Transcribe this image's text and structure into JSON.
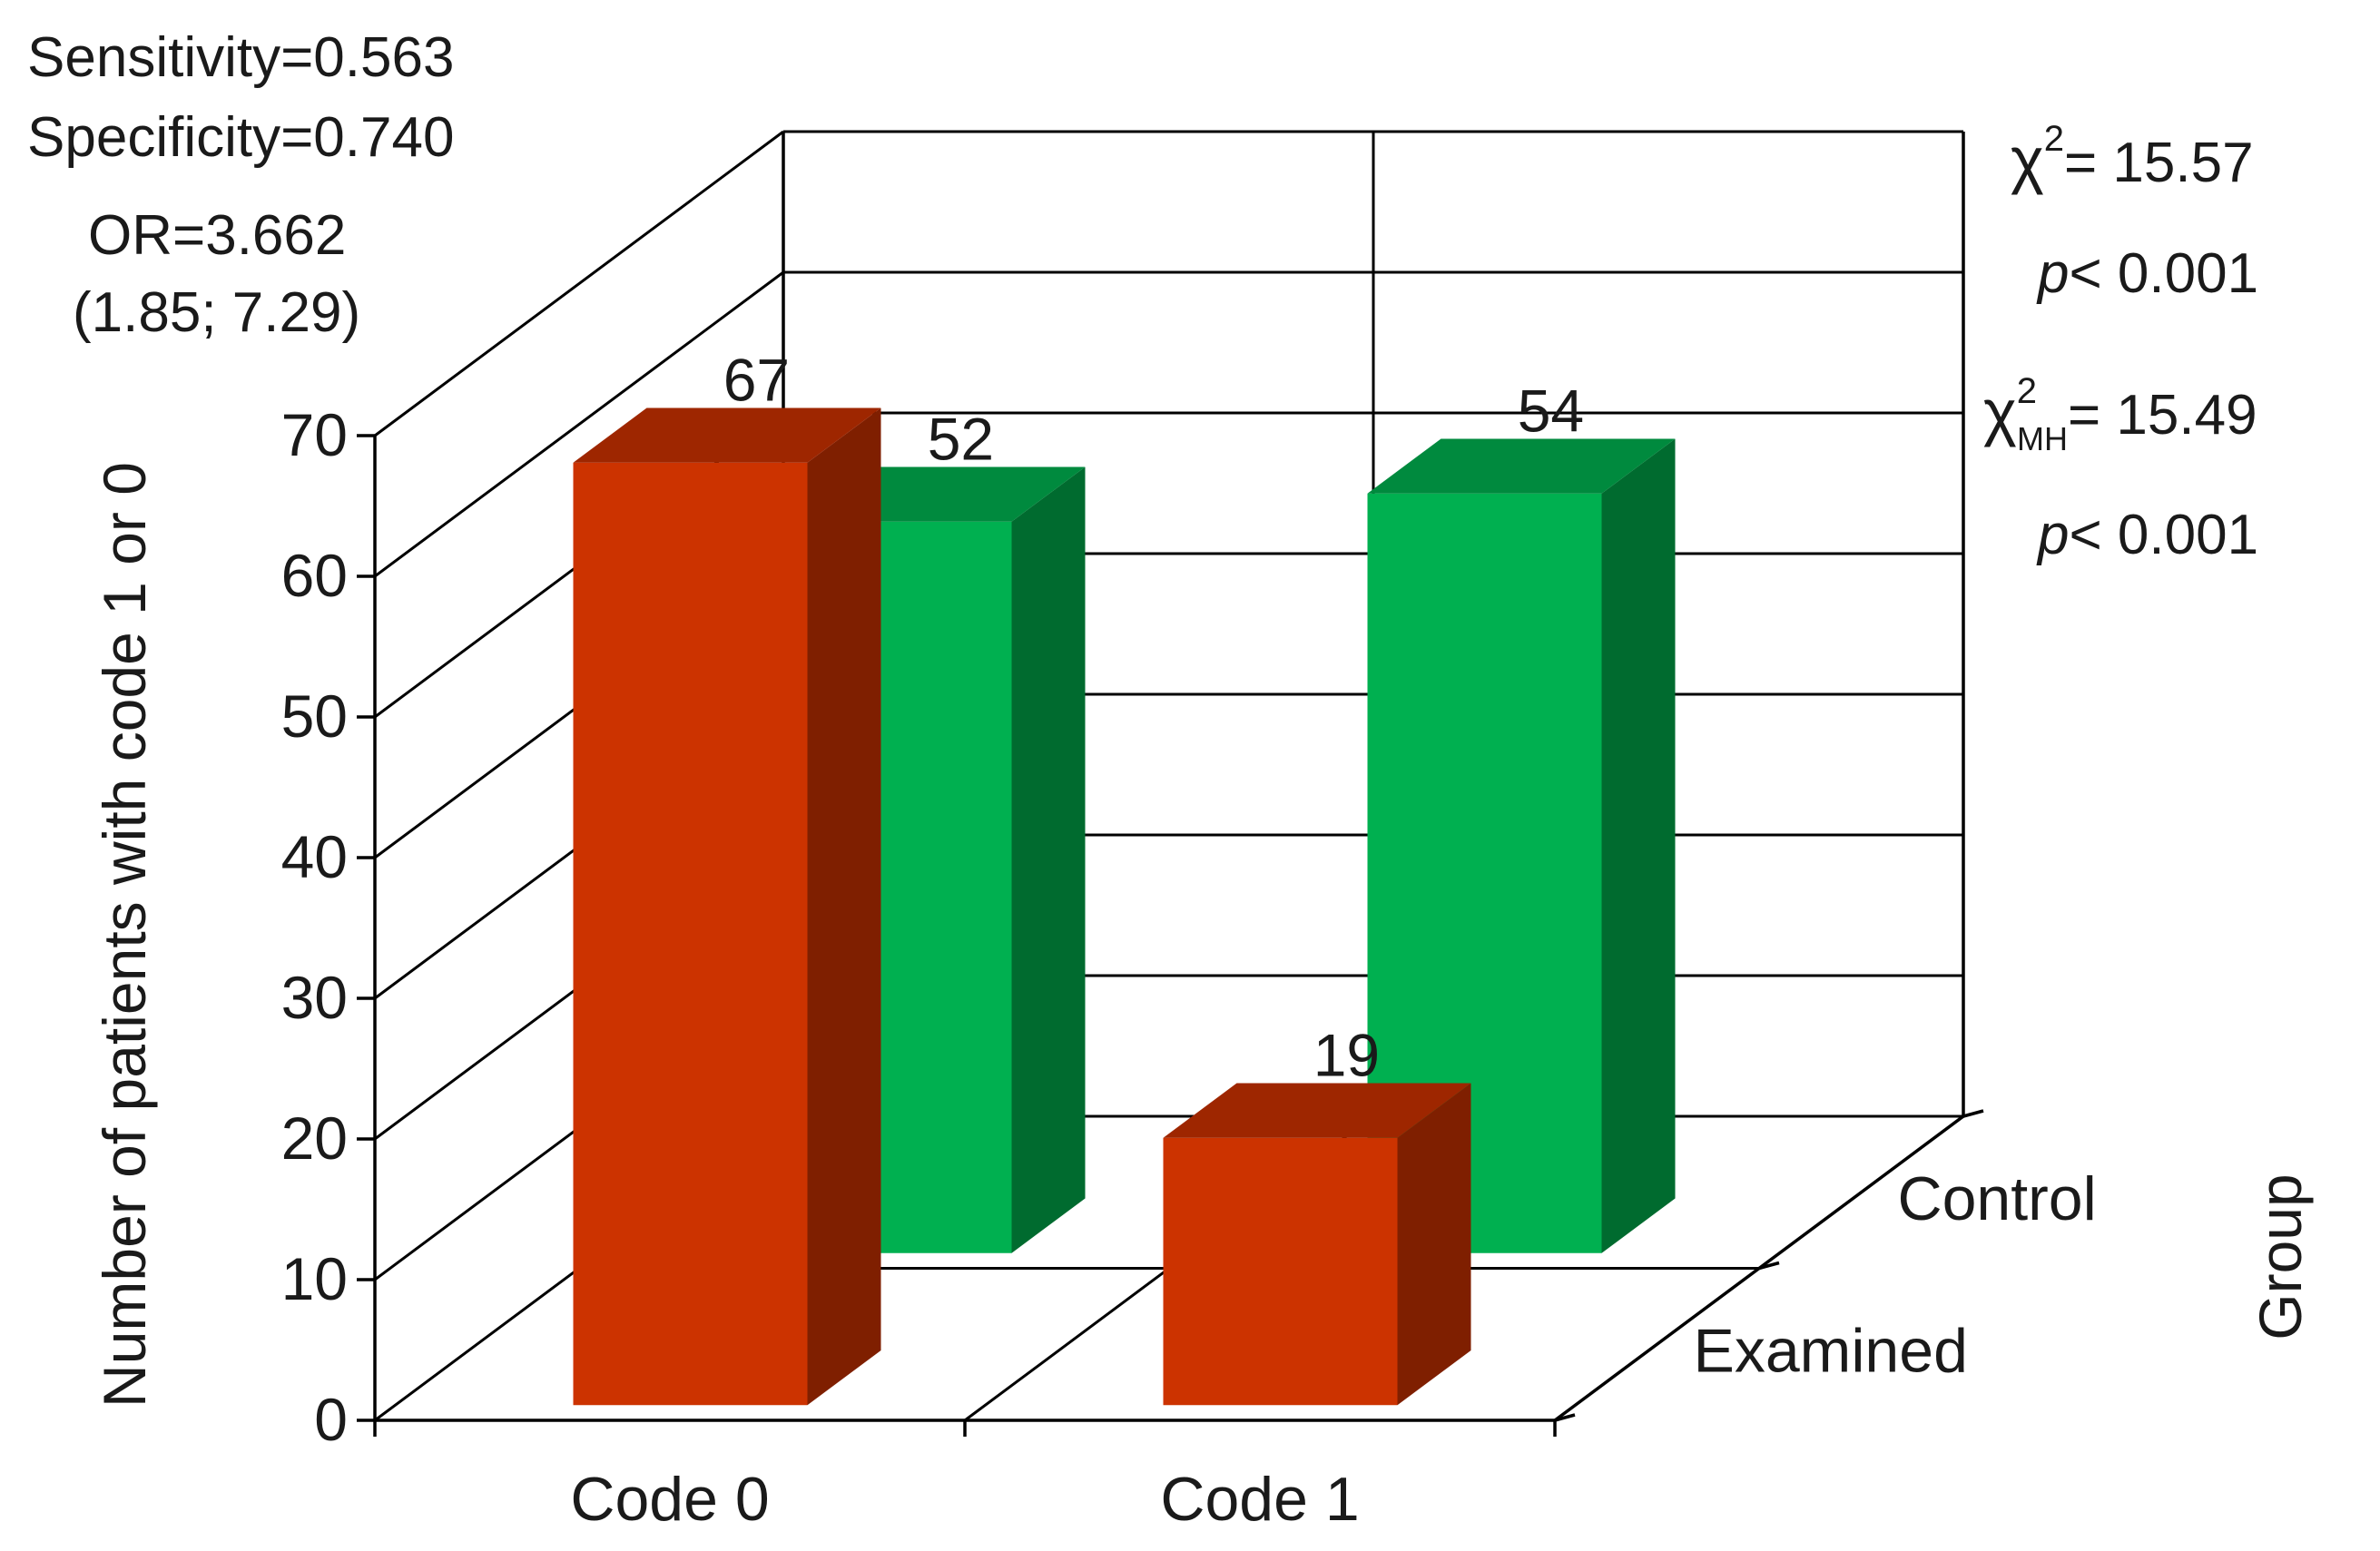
{
  "chart_data": {
    "type": "bar",
    "style": "3d-clustered",
    "categories": [
      "Code 0",
      "Code 1"
    ],
    "series": [
      {
        "name": "Examined",
        "values": [
          67,
          19
        ],
        "color": "#cc3300",
        "side_color": "#7f1f00",
        "top_color": "#9e2600"
      },
      {
        "name": "Control",
        "values": [
          52,
          54
        ],
        "color": "#00b050",
        "side_color": "#006b2f",
        "top_color": "#008a3e"
      }
    ],
    "ylabel": "Number of patients with code 1 or 0",
    "depth_axis_label": "Group",
    "ylim": [
      0,
      70
    ],
    "yticks": [
      "0",
      "10",
      "20",
      "30",
      "40",
      "50",
      "60",
      "70"
    ],
    "grid": true,
    "annotations": {
      "sensitivity": "Sensitivity=0.563",
      "specificity": "Specificity=0.740",
      "or": "OR=3.662",
      "or_ci": "(1.85; 7.29)",
      "chi2_label": "χ",
      "chi2_sup": "2",
      "chi2_value": "= 15.57",
      "p1_p": "p",
      "p1_value": "< 0.001",
      "chi2mh_label": "χ",
      "chi2mh_sup": "2",
      "chi2mh_sub": "MH",
      "chi2mh_value": "= 15.49",
      "p2_p": "p",
      "p2_value": "< 0.001"
    }
  }
}
